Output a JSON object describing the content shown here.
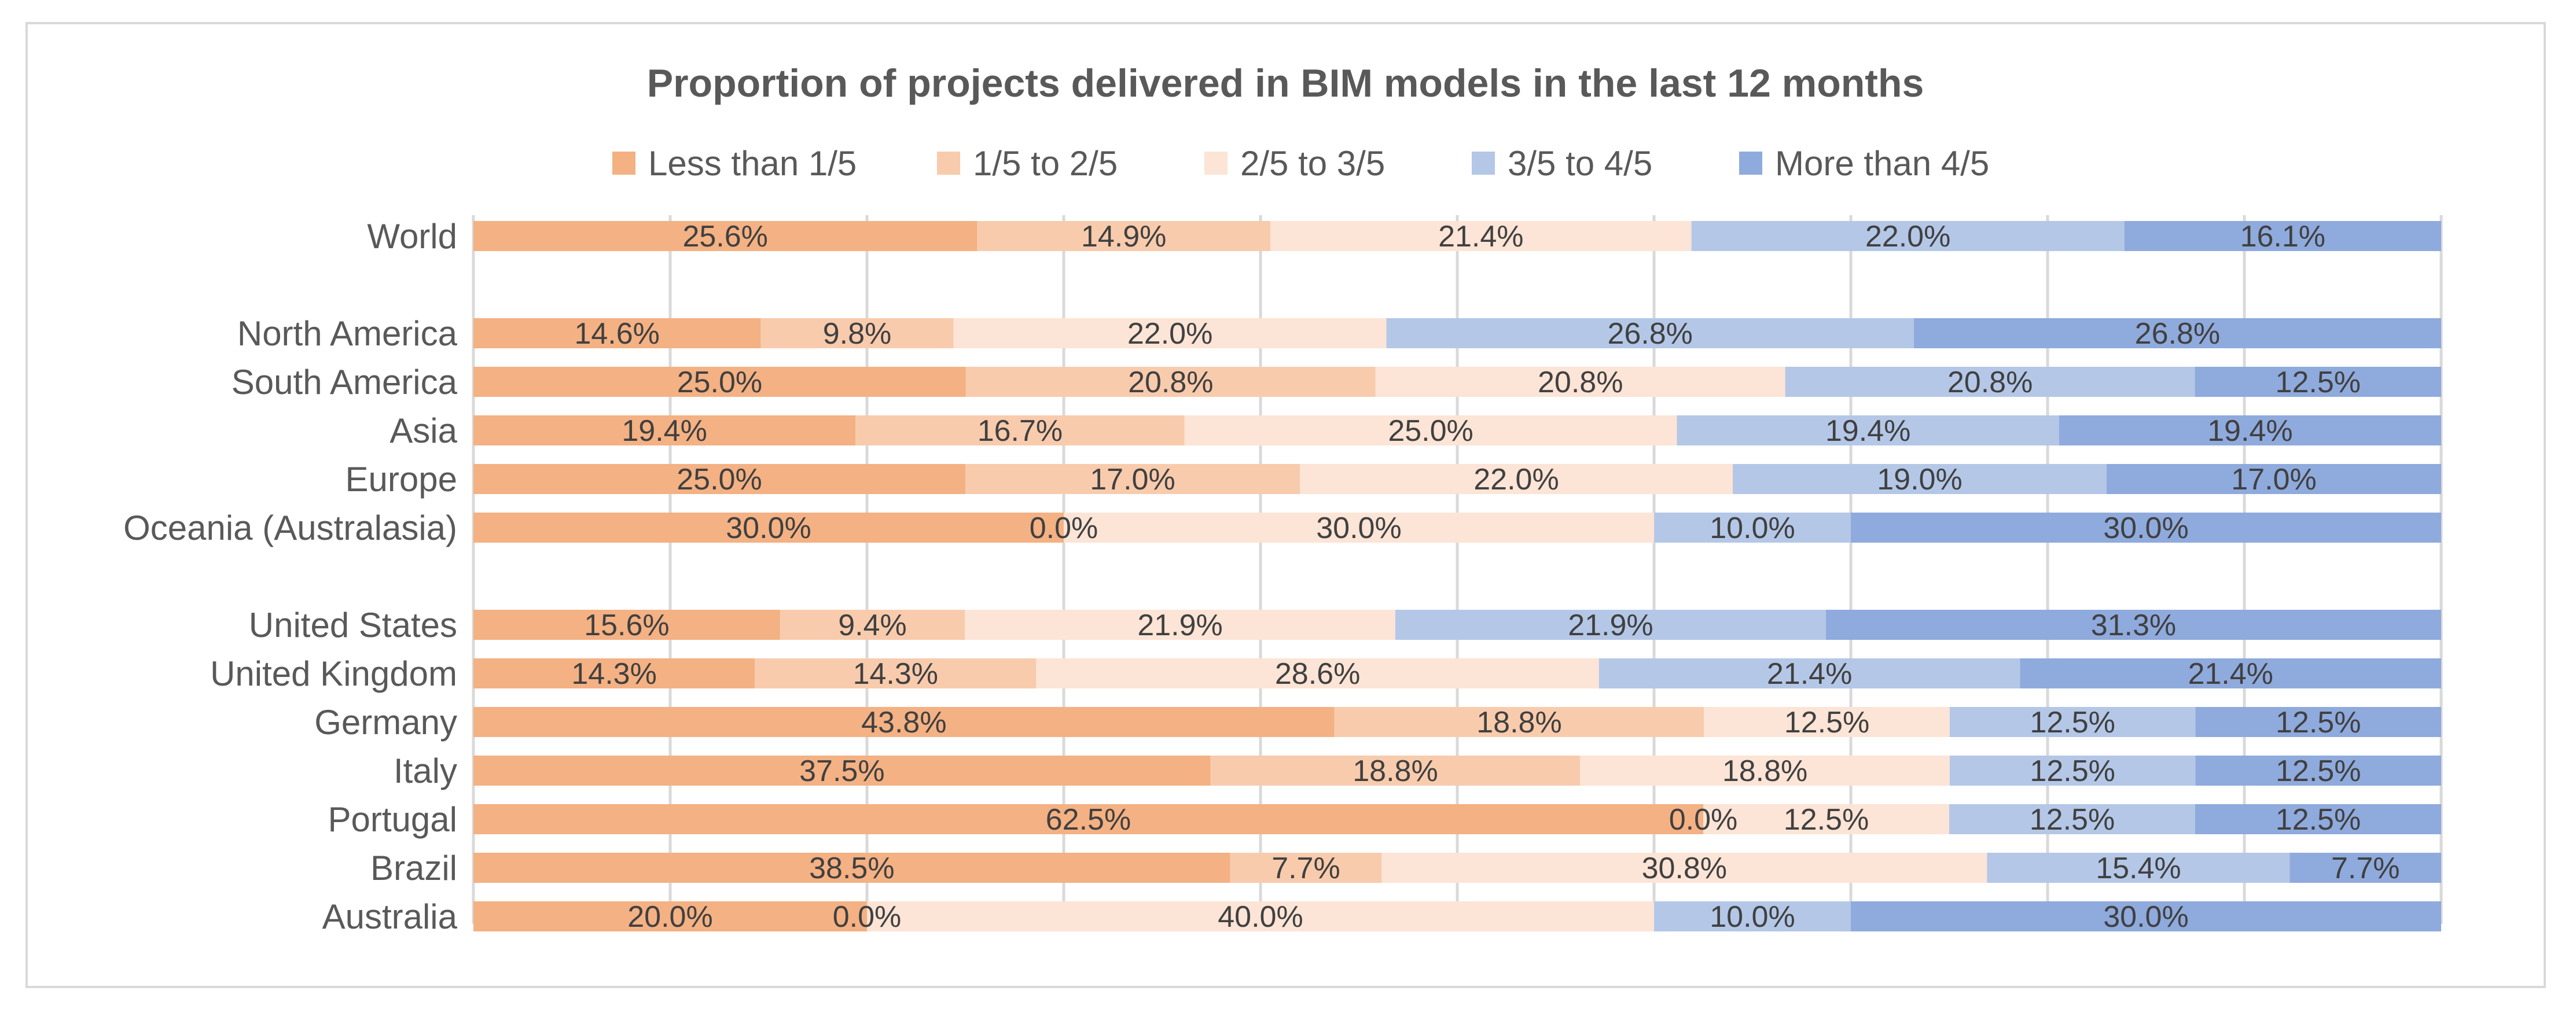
{
  "chart_data": {
    "type": "bar",
    "orientation": "horizontal",
    "stacked": "100%",
    "title": "Proportion of projects delivered in BIM models in the last 12 months",
    "xlabel": "",
    "ylabel": "",
    "xlim": [
      0,
      100
    ],
    "grid": true,
    "legend_position": "top",
    "categories": [
      "World",
      "",
      "North America",
      "South America",
      "Asia",
      "Europe",
      "Oceania (Australasia)",
      "",
      "United States",
      "United Kingdom",
      "Germany",
      "Italy",
      "Portugal",
      "Brazil",
      "Australia"
    ],
    "series": [
      {
        "name": "Less than 1/5",
        "color": "#f4b183",
        "values": [
          25.6,
          null,
          14.6,
          25.0,
          19.4,
          25.0,
          30.0,
          null,
          15.6,
          14.3,
          43.8,
          37.5,
          62.5,
          38.5,
          20.0
        ]
      },
      {
        "name": "1/5 to 2/5",
        "color": "#f8cbad",
        "values": [
          14.9,
          null,
          9.8,
          20.8,
          16.7,
          17.0,
          0.0,
          null,
          9.4,
          14.3,
          18.8,
          18.8,
          0.0,
          7.7,
          0.0
        ]
      },
      {
        "name": "2/5 to 3/5",
        "color": "#fce4d6",
        "values": [
          21.4,
          null,
          22.0,
          20.8,
          25.0,
          22.0,
          30.0,
          null,
          21.9,
          28.6,
          12.5,
          18.8,
          12.5,
          30.8,
          40.0
        ]
      },
      {
        "name": "3/5 to 4/5",
        "color": "#b4c7e7",
        "values": [
          22.0,
          null,
          26.8,
          20.8,
          19.4,
          19.0,
          10.0,
          null,
          21.9,
          21.4,
          12.5,
          12.5,
          12.5,
          15.4,
          10.0
        ]
      },
      {
        "name": "More than 4/5",
        "color": "#8faadc",
        "values": [
          16.1,
          null,
          26.8,
          12.5,
          19.4,
          17.0,
          30.0,
          null,
          31.3,
          21.4,
          12.5,
          12.5,
          12.5,
          7.7,
          30.0
        ]
      }
    ]
  }
}
